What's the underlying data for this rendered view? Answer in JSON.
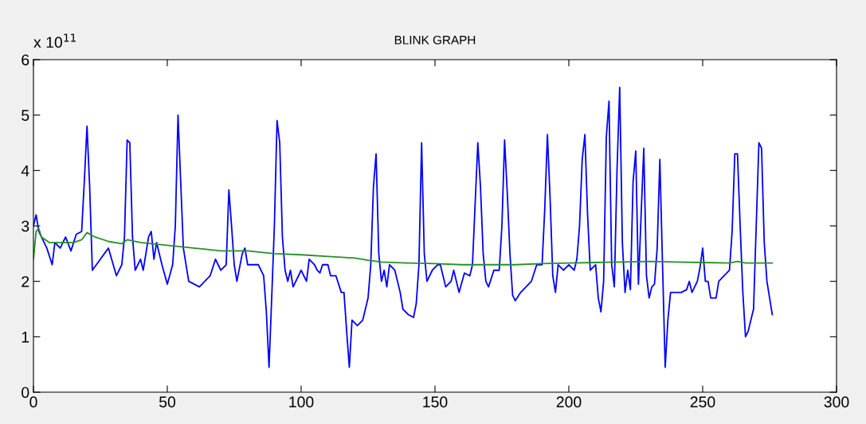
{
  "chart_data": {
    "type": "line",
    "title": "BLINK GRAPH",
    "annotations": [
      "x 10$^{11}$"
    ],
    "xlim": [
      0,
      300
    ],
    "xticks": [
      0,
      50,
      100,
      150,
      200,
      250,
      300
    ],
    "ylim": [
      0,
      6
    ],
    "yticks": [
      0,
      1,
      2,
      3,
      4,
      5,
      6
    ],
    "grid": false,
    "marker": "none",
    "line_style": "solid",
    "series": [
      {
        "color": "#0000ff",
        "x": [
          0,
          1,
          2,
          3,
          5,
          7,
          8,
          10,
          12,
          14,
          16,
          18,
          19,
          20,
          21,
          22,
          25,
          28,
          31,
          33,
          34,
          35,
          36,
          37,
          38,
          40,
          41,
          43,
          44,
          45,
          46,
          48,
          50,
          52,
          53,
          54,
          55,
          56,
          58,
          62,
          64,
          66,
          68,
          70,
          72,
          73,
          74,
          75,
          76,
          78,
          79,
          80,
          84,
          86,
          87,
          88,
          89,
          90,
          91,
          92,
          93,
          94,
          95,
          96,
          97,
          100,
          102,
          103,
          105,
          106,
          107,
          108,
          110,
          111,
          113,
          114,
          115,
          116,
          117,
          118,
          119,
          121,
          123,
          125,
          126,
          127,
          128,
          129,
          130,
          131,
          132,
          133,
          135,
          137,
          138,
          140,
          142,
          143,
          144,
          145,
          146,
          147,
          149,
          151,
          152,
          154,
          156,
          157,
          159,
          161,
          163,
          164,
          165,
          166,
          167,
          168,
          169,
          170,
          172,
          174,
          175,
          176,
          177,
          178,
          179,
          180,
          182,
          184,
          186,
          188,
          190,
          191,
          192,
          193,
          194,
          195,
          196,
          198,
          200,
          202,
          203,
          204,
          205,
          206,
          207,
          208,
          210,
          211,
          212,
          213,
          214,
          215,
          216,
          217,
          218,
          219,
          220,
          221,
          222,
          223,
          224,
          225,
          226,
          227,
          228,
          229,
          230,
          231,
          232,
          233,
          234,
          235,
          236,
          237,
          238,
          240,
          242,
          244,
          245,
          246,
          248,
          249,
          250,
          251,
          252,
          253,
          255,
          256,
          258,
          260,
          261,
          262,
          263,
          264,
          265,
          266,
          267,
          269,
          270,
          271,
          272,
          273,
          274,
          275,
          276
        ],
        "values": [
          3.0,
          3.2,
          2.9,
          2.8,
          2.6,
          2.3,
          2.7,
          2.6,
          2.8,
          2.55,
          2.85,
          2.9,
          3.8,
          4.8,
          3.7,
          2.2,
          2.4,
          2.6,
          2.1,
          2.3,
          2.8,
          4.55,
          4.5,
          2.8,
          2.2,
          2.4,
          2.2,
          2.8,
          2.9,
          2.4,
          2.7,
          2.3,
          1.95,
          2.3,
          3.0,
          5.0,
          3.8,
          2.6,
          2.0,
          1.9,
          2.0,
          2.1,
          2.4,
          2.2,
          2.3,
          3.65,
          3.0,
          2.3,
          2.0,
          2.5,
          2.6,
          2.3,
          2.3,
          2.1,
          1.45,
          0.45,
          1.7,
          3.0,
          4.9,
          4.5,
          2.8,
          2.2,
          2.0,
          2.2,
          1.9,
          2.2,
          2.0,
          2.4,
          2.3,
          2.2,
          2.15,
          2.3,
          2.3,
          2.1,
          2.1,
          1.95,
          1.8,
          1.8,
          1.1,
          0.45,
          1.3,
          1.2,
          1.3,
          1.7,
          2.3,
          3.7,
          4.3,
          2.5,
          2.0,
          2.2,
          1.9,
          2.3,
          2.2,
          1.8,
          1.5,
          1.4,
          1.35,
          1.6,
          2.3,
          4.5,
          2.5,
          2.0,
          2.2,
          2.3,
          2.3,
          1.9,
          2.0,
          2.2,
          1.8,
          2.15,
          2.1,
          2.3,
          3.4,
          4.5,
          3.7,
          2.5,
          2.0,
          1.9,
          2.2,
          2.2,
          3.0,
          4.55,
          3.6,
          2.5,
          1.75,
          1.65,
          1.8,
          1.9,
          2.0,
          2.3,
          2.3,
          3.3,
          4.65,
          3.5,
          2.1,
          1.8,
          2.3,
          2.2,
          2.3,
          2.2,
          2.4,
          3.0,
          4.2,
          4.65,
          3.2,
          2.2,
          2.3,
          1.7,
          1.45,
          2.0,
          4.6,
          5.25,
          2.3,
          1.9,
          4.0,
          5.5,
          2.7,
          1.8,
          2.2,
          1.85,
          3.8,
          4.35,
          1.95,
          3.2,
          4.4,
          2.1,
          1.7,
          1.9,
          1.95,
          2.6,
          4.2,
          2.3,
          0.45,
          1.3,
          1.8,
          1.8,
          1.8,
          1.85,
          2.0,
          1.8,
          2.0,
          2.25,
          2.6,
          2.0,
          2.0,
          1.7,
          1.7,
          2.0,
          2.1,
          2.2,
          2.9,
          4.3,
          4.3,
          3.0,
          1.8,
          1.0,
          1.1,
          1.5,
          3.0,
          4.5,
          4.4,
          2.7,
          2.0,
          1.7,
          1.4
        ]
      },
      {
        "color": "#259125",
        "x": [
          0,
          1,
          2,
          3,
          6,
          10,
          15,
          18,
          20,
          23,
          28,
          33,
          35,
          40,
          50,
          60,
          70,
          80,
          90,
          100,
          110,
          120,
          125,
          130,
          140,
          150,
          160,
          170,
          180,
          190,
          200,
          210,
          220,
          230,
          240,
          250,
          260,
          263,
          266,
          276
        ],
        "values": [
          2.4,
          2.9,
          2.95,
          2.8,
          2.7,
          2.7,
          2.7,
          2.75,
          2.88,
          2.8,
          2.72,
          2.68,
          2.75,
          2.7,
          2.65,
          2.6,
          2.55,
          2.55,
          2.5,
          2.48,
          2.45,
          2.42,
          2.38,
          2.35,
          2.33,
          2.32,
          2.3,
          2.3,
          2.3,
          2.32,
          2.33,
          2.34,
          2.35,
          2.36,
          2.35,
          2.34,
          2.33,
          2.36,
          2.33,
          2.33
        ]
      }
    ]
  }
}
